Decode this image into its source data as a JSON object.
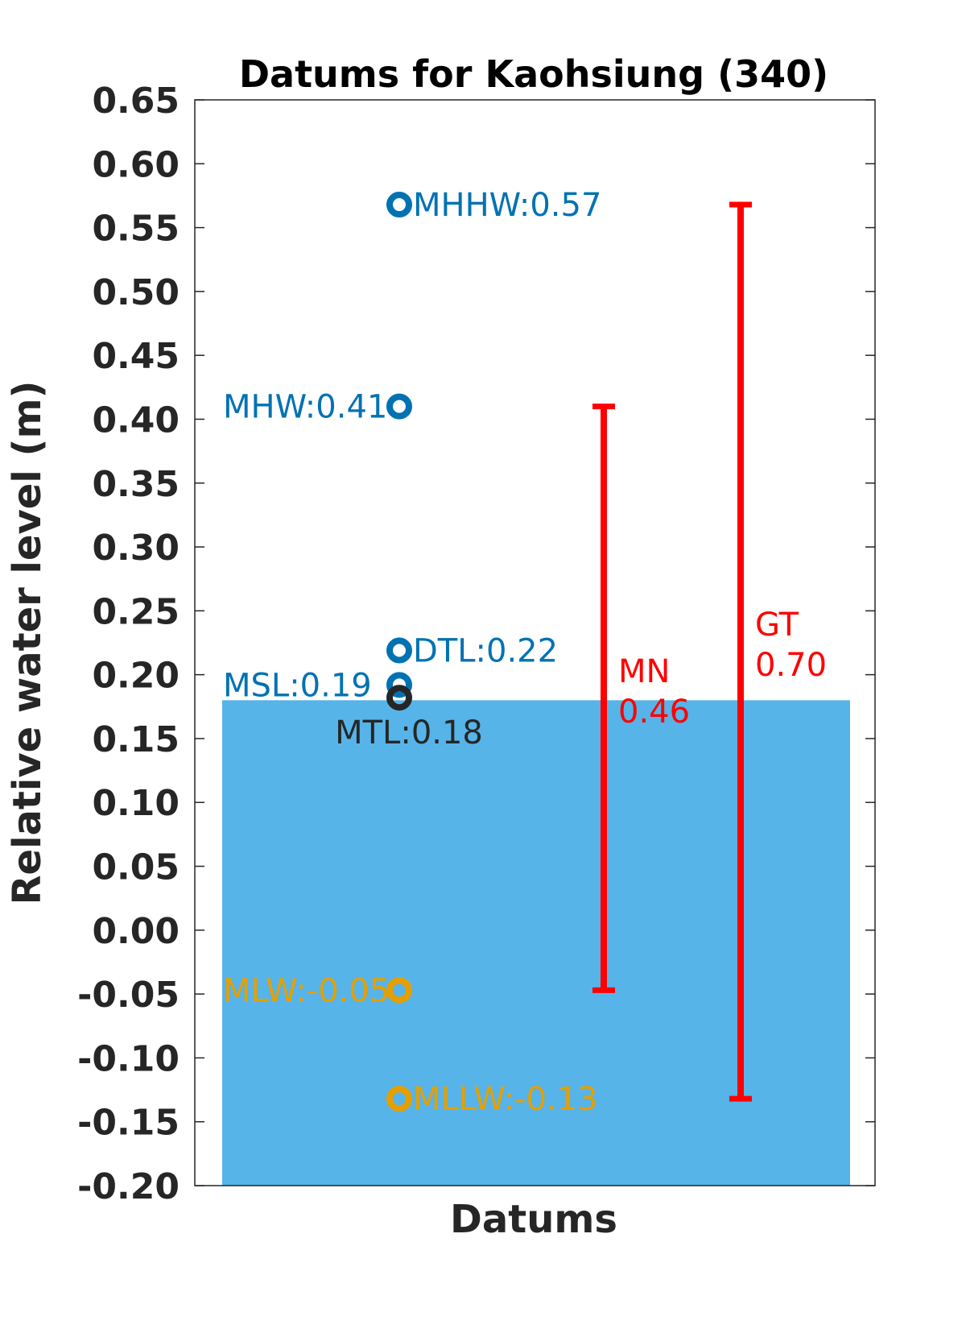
{
  "chart_data": {
    "type": "scatter",
    "title": "Datums for Kaohsiung (340)",
    "xlabel": "Datums",
    "ylabel": "Relative water level (m)",
    "ylim": [
      -0.2,
      0.65
    ],
    "yticks": [
      "0.65",
      "0.60",
      "0.55",
      "0.50",
      "0.45",
      "0.40",
      "0.35",
      "0.30",
      "0.25",
      "0.20",
      "0.15",
      "0.10",
      "0.05",
      "0.00",
      "-0.05",
      "-0.10",
      "-0.15",
      "-0.20"
    ],
    "ytick_values": [
      0.65,
      0.6,
      0.55,
      0.5,
      0.45,
      0.4,
      0.35,
      0.3,
      0.25,
      0.2,
      0.15,
      0.1,
      0.05,
      0.0,
      -0.05,
      -0.1,
      -0.15,
      -0.2
    ],
    "grid": false,
    "background_bar": {
      "value": 0.18,
      "color": "#56B4E9"
    },
    "points": [
      {
        "label": "MHHW:0.57",
        "value": 0.568,
        "color": "#0072B2",
        "label_side": "right"
      },
      {
        "label": "MHW:0.41",
        "value": 0.41,
        "color": "#0072B2",
        "label_side": "left"
      },
      {
        "label": "DTL:0.22",
        "value": 0.219,
        "color": "#0072B2",
        "label_side": "right"
      },
      {
        "label": "MSL:0.19",
        "value": 0.192,
        "color": "#0072B2",
        "label_side": "left"
      },
      {
        "label": "MTL:0.18",
        "value": 0.182,
        "color": "#262626",
        "label_side": "below"
      },
      {
        "label": "MLW:-0.05",
        "value": -0.047,
        "color": "#E69F00",
        "label_side": "left"
      },
      {
        "label": "MLLW:-0.13",
        "value": -0.132,
        "color": "#E69F00",
        "label_side": "right"
      }
    ],
    "ranges": [
      {
        "name": "MN",
        "value_text": "0.46",
        "low": -0.047,
        "high": 0.41,
        "color": "#FF0000"
      },
      {
        "name": "GT",
        "value_text": "0.70",
        "low": -0.132,
        "high": 0.568,
        "color": "#FF0000"
      }
    ]
  }
}
